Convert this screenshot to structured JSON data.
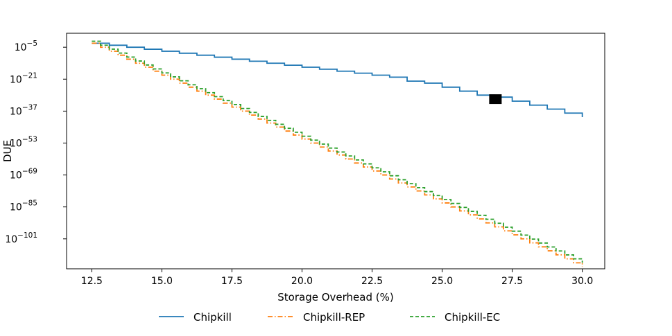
{
  "chart_data": {
    "type": "line",
    "title": "",
    "xlabel": "Storage Overhead (%)",
    "ylabel": "DUE",
    "xlim": [
      11.6,
      30.8
    ],
    "ylim_exponent": [
      -116,
      2
    ],
    "y_scale": "log",
    "x_ticks": [
      12.5,
      15.0,
      17.5,
      20.0,
      22.5,
      25.0,
      27.5,
      30.0
    ],
    "x_tick_labels": [
      "12.5",
      "15.0",
      "17.5",
      "20.0",
      "22.5",
      "25.0",
      "27.5",
      "30.0"
    ],
    "y_tick_exponents": [
      -5,
      -21,
      -37,
      -53,
      -69,
      -85,
      -101
    ],
    "y_tick_base": "10",
    "y_tick_labels": [
      "−5",
      "−21",
      "−37",
      "−53",
      "−69",
      "−85",
      "−101"
    ],
    "legend": {
      "placement": "bottom-center-outside",
      "entries": [
        "Chipkill",
        "Chipkill-REP",
        "Chipkill-EC"
      ]
    },
    "series": [
      {
        "name": "Chipkill",
        "color": "#1f77b4",
        "style": "solid",
        "step_width": 0.625,
        "x": [
          12.5,
          13.125,
          13.75,
          14.375,
          15.0,
          15.625,
          16.25,
          16.875,
          17.5,
          18.125,
          18.75,
          19.375,
          20.0,
          20.625,
          21.25,
          21.875,
          22.5,
          23.125,
          23.75,
          24.375,
          25.0,
          25.625,
          26.25,
          26.875,
          27.5,
          28.125,
          28.75,
          29.375,
          30.0
        ],
        "y_exponent": [
          -3,
          -4,
          -5,
          -6,
          -7,
          -8,
          -9,
          -10,
          -11,
          -12,
          -13,
          -14,
          -15,
          -16,
          -17,
          -18,
          -19,
          -20,
          -22,
          -23,
          -25,
          -27,
          -29,
          -30,
          -32,
          -34,
          -36,
          -38,
          -40
        ]
      },
      {
        "name": "Chipkill-REP",
        "color": "#ff7f0e",
        "style": "dashdot",
        "step_width": 0.3125,
        "y_exponent_start": -3,
        "y_exponent_end": -115
      },
      {
        "name": "Chipkill-EC",
        "color": "#2ca02c",
        "style": "dashed",
        "step_width": 0.3125,
        "y_exponent_start": -2,
        "y_exponent_end": -113
      }
    ],
    "annotations": [
      {
        "type": "square-marker",
        "x": 26.9,
        "y_exponent": -31,
        "color": "#000000"
      }
    ]
  }
}
